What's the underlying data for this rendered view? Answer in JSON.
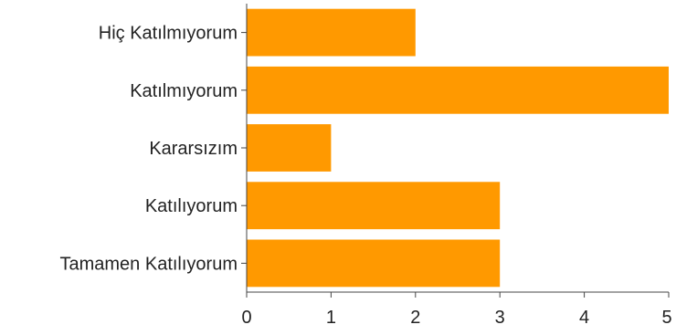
{
  "chart_data": {
    "type": "bar",
    "orientation": "horizontal",
    "categories": [
      "Hiç Katılmıyorum",
      "Katılmıyorum",
      "Kararsızım",
      "Katılıyorum",
      "Tamamen Katılıyorum"
    ],
    "values": [
      2,
      5,
      1,
      3,
      3
    ],
    "xlim": [
      0,
      5
    ],
    "xticks": [
      "0",
      "1",
      "2",
      "3",
      "4",
      "5"
    ],
    "title": "",
    "xlabel": "",
    "ylabel": "",
    "grid": false,
    "bar_color": "#FF9900"
  }
}
